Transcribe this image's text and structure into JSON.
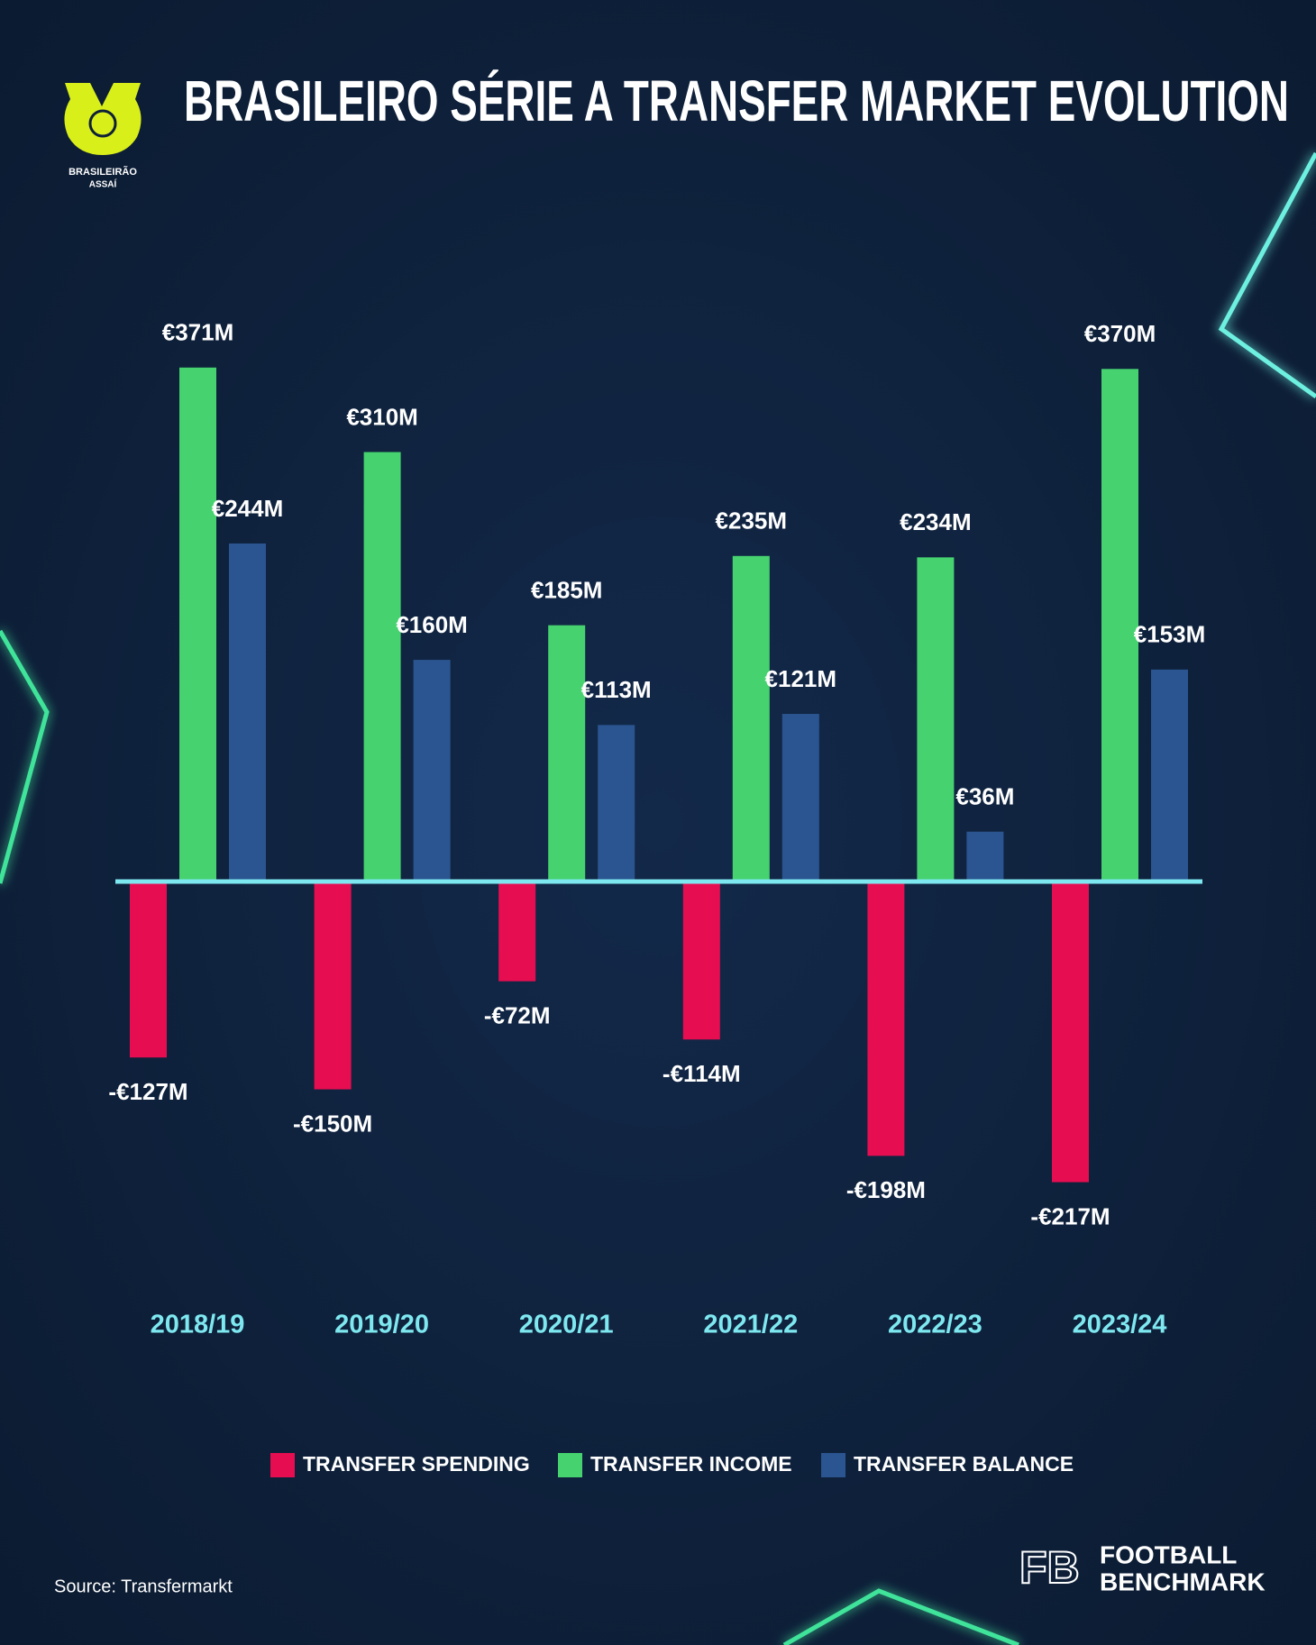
{
  "chart_data": {
    "type": "bar",
    "title": "BRASILEIRO SÉRIE A TRANSFER MARKET EVOLUTION",
    "categories": [
      "2018/19",
      "2019/20",
      "2020/21",
      "2021/22",
      "2022/23",
      "2023/24"
    ],
    "series": [
      {
        "name": "TRANSFER SPENDING",
        "color": "#e60d51",
        "values": [
          -127,
          -150,
          -72,
          -114,
          -198,
          -217
        ],
        "value_labels": [
          "-€127M",
          "-€150M",
          "-€72M",
          "-€114M",
          "-€198M",
          "-€217M"
        ]
      },
      {
        "name": "TRANSFER INCOME",
        "color": "#45d26f",
        "values": [
          371,
          310,
          185,
          235,
          234,
          370
        ],
        "value_labels": [
          "€371M",
          "€310M",
          "€185M",
          "€235M",
          "€234M",
          "€370M"
        ]
      },
      {
        "name": "TRANSFER BALANCE",
        "color": "#2a5590",
        "values": [
          244,
          160,
          113,
          121,
          36,
          153
        ],
        "value_labels": [
          "€244M",
          "€160M",
          "€113M",
          "€121M",
          "€36M",
          "€153M"
        ]
      }
    ]
  },
  "logo": {
    "line1": "BRASILEIRÃO",
    "line2": "ASSAÍ"
  },
  "source": "Source: Transfermarkt",
  "brand": {
    "line1": "FOOTBALL",
    "line2": "BENCHMARK"
  }
}
